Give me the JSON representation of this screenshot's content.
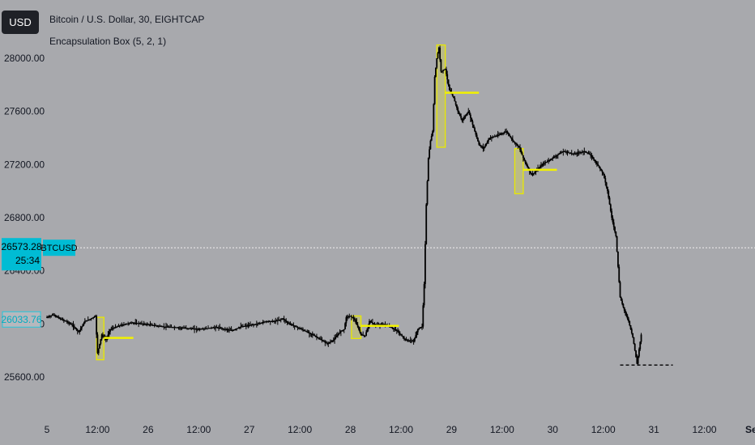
{
  "header": {
    "currency_button": "USD",
    "symbol_title": "Bitcoin / U.S. Dollar, 30, EIGHTCAP",
    "indicator_title": "Encapsulation Box (5, 2, 1)"
  },
  "price_labels": {
    "last_price": "26573.28",
    "countdown": "25:34",
    "symbol": "BTCUSD",
    "open_price": "26033.76"
  },
  "colors": {
    "background": "#a8a9ad",
    "candles": "#000000",
    "box_border": "#e8e800",
    "box_fill": "#c8c86a",
    "level_line": "#f2f200",
    "last_price_bg": "#00bcd4",
    "open_label_border": "#26c6da"
  },
  "chart_data": {
    "type": "line",
    "title": "Bitcoin / U.S. Dollar, 30, EIGHTCAP",
    "ylim": [
      25500,
      28280
    ],
    "y_ticks": [
      25600,
      26000,
      26400,
      26800,
      27200,
      27600,
      28000
    ],
    "y_tick_labels": [
      "25600.00",
      "26000.00",
      "26400.00",
      "26800.00",
      "27200.00",
      "27600.00",
      "28000.00"
    ],
    "x_index_range": [
      0,
      445
    ],
    "x_ticks": [
      {
        "i": 0,
        "label": "5"
      },
      {
        "i": 24,
        "label": "12:00"
      },
      {
        "i": 48,
        "label": "26"
      },
      {
        "i": 72,
        "label": "12:00"
      },
      {
        "i": 96,
        "label": "27"
      },
      {
        "i": 120,
        "label": "12:00"
      },
      {
        "i": 144,
        "label": "28"
      },
      {
        "i": 168,
        "label": "12:00"
      },
      {
        "i": 192,
        "label": "29"
      },
      {
        "i": 216,
        "label": "12:00"
      },
      {
        "i": 240,
        "label": "30"
      },
      {
        "i": 264,
        "label": "12:00"
      },
      {
        "i": 288,
        "label": "31"
      },
      {
        "i": 312,
        "label": "12:00"
      },
      {
        "i": 336,
        "label": "Se"
      }
    ],
    "price_path": [
      [
        0,
        26050
      ],
      [
        3,
        26070
      ],
      [
        6,
        26040
      ],
      [
        9,
        26020
      ],
      [
        12,
        25990
      ],
      [
        15,
        25940
      ],
      [
        18,
        26020
      ],
      [
        21,
        26040
      ],
      [
        23,
        26060
      ],
      [
        24,
        25780
      ],
      [
        26,
        25920
      ],
      [
        28,
        25880
      ],
      [
        30,
        25960
      ],
      [
        35,
        25990
      ],
      [
        40,
        26010
      ],
      [
        46,
        26000
      ],
      [
        55,
        25980
      ],
      [
        65,
        25970
      ],
      [
        72,
        25960
      ],
      [
        80,
        25975
      ],
      [
        88,
        25950
      ],
      [
        92,
        25980
      ],
      [
        100,
        26000
      ],
      [
        104,
        26020
      ],
      [
        108,
        26020
      ],
      [
        112,
        26040
      ],
      [
        114,
        26010
      ],
      [
        118,
        25980
      ],
      [
        122,
        25950
      ],
      [
        126,
        25920
      ],
      [
        130,
        25880
      ],
      [
        133,
        25850
      ],
      [
        136,
        25880
      ],
      [
        139,
        25940
      ],
      [
        141,
        25960
      ],
      [
        142,
        26050
      ],
      [
        144,
        26060
      ],
      [
        146,
        26030
      ],
      [
        149,
        25920
      ],
      [
        151,
        25910
      ],
      [
        153,
        26020
      ],
      [
        156,
        25990
      ],
      [
        160,
        26000
      ],
      [
        166,
        25950
      ],
      [
        170,
        25880
      ],
      [
        174,
        25870
      ],
      [
        176,
        25960
      ],
      [
        178,
        25980
      ],
      [
        179,
        26300
      ],
      [
        180,
        26900
      ],
      [
        181,
        27250
      ],
      [
        182,
        27380
      ],
      [
        183,
        27450
      ],
      [
        184,
        27860
      ],
      [
        185,
        28000
      ],
      [
        186,
        28080
      ],
      [
        187,
        27900
      ],
      [
        189,
        27920
      ],
      [
        191,
        27760
      ],
      [
        193,
        27700
      ],
      [
        195,
        27600
      ],
      [
        197,
        27530
      ],
      [
        200,
        27600
      ],
      [
        203,
        27450
      ],
      [
        205,
        27350
      ],
      [
        207,
        27320
      ],
      [
        210,
        27400
      ],
      [
        214,
        27420
      ],
      [
        218,
        27450
      ],
      [
        221,
        27380
      ],
      [
        224,
        27330
      ],
      [
        226,
        27250
      ],
      [
        228,
        27180
      ],
      [
        230,
        27120
      ],
      [
        232,
        27150
      ],
      [
        235,
        27200
      ],
      [
        240,
        27250
      ],
      [
        245,
        27300
      ],
      [
        250,
        27280
      ],
      [
        255,
        27300
      ],
      [
        258,
        27270
      ],
      [
        262,
        27180
      ],
      [
        264,
        27130
      ],
      [
        266,
        27000
      ],
      [
        268,
        26800
      ],
      [
        270,
        26660
      ],
      [
        272,
        26200
      ],
      [
        274,
        26100
      ],
      [
        276,
        26020
      ],
      [
        278,
        25900
      ],
      [
        280,
        25700
      ],
      [
        282,
        25920
      ]
    ],
    "boxes": [
      {
        "i0": 23.5,
        "i1": 27,
        "top": 26050,
        "bottom": 25730
      },
      {
        "i0": 144.5,
        "i1": 149,
        "top": 26060,
        "bottom": 25890
      },
      {
        "i0": 185,
        "i1": 189,
        "top": 28100,
        "bottom": 27330
      },
      {
        "i0": 222,
        "i1": 226,
        "top": 27320,
        "bottom": 26980
      }
    ],
    "level_lines": [
      {
        "i0": 27,
        "i1": 41,
        "y": 25895
      },
      {
        "i0": 149,
        "i1": 167,
        "y": 25985
      },
      {
        "i0": 189,
        "i1": 205,
        "y": 27740
      },
      {
        "i0": 226,
        "i1": 242,
        "y": 27160
      }
    ],
    "dashed_level": {
      "i0": 272,
      "i1": 297,
      "y": 25690
    },
    "last_price": 26573.28,
    "open_price": 26033.76
  }
}
